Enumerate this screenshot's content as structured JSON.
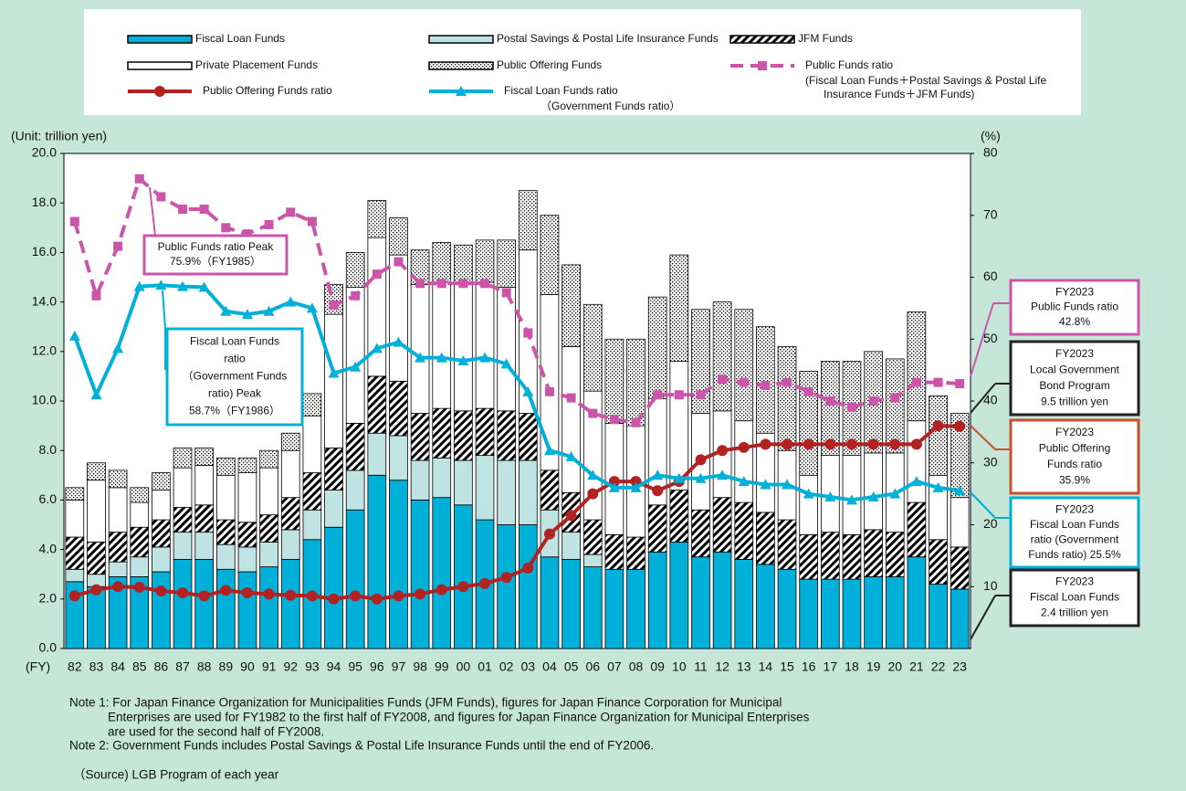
{
  "chart_data": {
    "type": "bar",
    "unit_label": "(Unit: trillion yen)",
    "y2_label": "(%)",
    "x_label": "(FY)",
    "categories": [
      "82",
      "83",
      "84",
      "85",
      "86",
      "87",
      "88",
      "89",
      "90",
      "91",
      "92",
      "93",
      "94",
      "95",
      "96",
      "97",
      "98",
      "99",
      "00",
      "01",
      "02",
      "03",
      "04",
      "05",
      "06",
      "07",
      "08",
      "09",
      "10",
      "11",
      "12",
      "13",
      "14",
      "15",
      "16",
      "17",
      "18",
      "19",
      "20",
      "21",
      "22",
      "23"
    ],
    "ylim": [
      0,
      20
    ],
    "yticks": [
      {
        "value": 0,
        "label": "0.0"
      },
      {
        "value": 2,
        "label": "2.0"
      },
      {
        "value": 4,
        "label": "4.0"
      },
      {
        "value": 6,
        "label": "6.0"
      },
      {
        "value": 8,
        "label": "8.0"
      },
      {
        "value": 10,
        "label": "10.0"
      },
      {
        "value": 12,
        "label": "12.0"
      },
      {
        "value": 14,
        "label": "14.0"
      },
      {
        "value": 16,
        "label": "16.0"
      },
      {
        "value": 18,
        "label": "18.0"
      },
      {
        "value": 20,
        "label": "20.0"
      }
    ],
    "y2lim": [
      0,
      80
    ],
    "y2ticks": [
      10,
      20,
      30,
      40,
      50,
      60,
      70,
      80
    ],
    "series": [
      {
        "name": "Fiscal Loan Funds",
        "type": "bar",
        "fill": "solid",
        "color": "#00b0d8",
        "values": [
          2.7,
          2.5,
          2.9,
          2.9,
          3.1,
          3.6,
          3.6,
          3.2,
          3.1,
          3.3,
          3.6,
          4.4,
          4.9,
          5.6,
          7.0,
          6.8,
          6.0,
          6.1,
          5.8,
          5.2,
          5.0,
          5.0,
          3.7,
          3.6,
          3.3,
          3.2,
          3.2,
          3.9,
          4.3,
          3.7,
          3.9,
          3.6,
          3.4,
          3.2,
          2.8,
          2.8,
          2.8,
          2.9,
          2.9,
          3.7,
          2.6,
          2.4
        ]
      },
      {
        "name": "Postal Savings & Postal Life Insurance Funds",
        "type": "bar",
        "fill": "solid",
        "color": "#bfe3e3",
        "values": [
          0.5,
          0.5,
          0.6,
          0.8,
          1.0,
          1.1,
          1.1,
          1.0,
          1.0,
          1.0,
          1.2,
          1.2,
          1.5,
          1.6,
          1.7,
          1.8,
          1.6,
          1.6,
          1.8,
          2.6,
          2.6,
          2.6,
          1.9,
          1.1,
          0.5,
          0,
          0,
          0,
          0,
          0,
          0,
          0,
          0,
          0,
          0,
          0,
          0,
          0,
          0,
          0,
          0,
          0
        ]
      },
      {
        "name": "JFM Funds",
        "type": "bar",
        "fill": "hatch",
        "color": "#000000",
        "values": [
          1.3,
          1.3,
          1.2,
          1.2,
          1.1,
          1.0,
          1.1,
          1.0,
          1.0,
          1.1,
          1.3,
          1.5,
          1.7,
          1.9,
          2.3,
          2.2,
          1.9,
          2.0,
          2.0,
          1.9,
          2.0,
          1.9,
          1.6,
          1.6,
          1.4,
          1.4,
          1.3,
          1.9,
          2.1,
          1.9,
          2.2,
          2.3,
          2.1,
          2.0,
          1.8,
          1.9,
          1.8,
          1.9,
          1.8,
          2.2,
          1.8,
          1.7
        ]
      },
      {
        "name": "Private Placement Funds",
        "type": "bar",
        "fill": "solid",
        "color": "#ffffff",
        "values": [
          1.5,
          2.5,
          1.8,
          1.0,
          1.2,
          1.6,
          1.6,
          1.8,
          2.0,
          1.9,
          1.9,
          2.3,
          5.4,
          5.5,
          5.6,
          5.1,
          5.2,
          5.1,
          5.2,
          5.1,
          5.0,
          6.6,
          7.1,
          5.9,
          5.2,
          4.5,
          4.5,
          4.3,
          5.2,
          3.9,
          3.5,
          3.3,
          3.2,
          2.8,
          2.4,
          3.1,
          3.2,
          3.1,
          3.2,
          3.3,
          2.6,
          2.0
        ]
      },
      {
        "name": "Public Offering Funds",
        "type": "bar",
        "fill": "dots",
        "color": "#000000",
        "values": [
          0.5,
          0.7,
          0.7,
          0.6,
          0.7,
          0.8,
          0.7,
          0.7,
          0.6,
          0.7,
          0.7,
          0.9,
          1.2,
          1.4,
          1.5,
          1.5,
          1.4,
          1.6,
          1.5,
          1.7,
          1.9,
          2.4,
          3.2,
          3.3,
          3.5,
          3.4,
          3.5,
          4.1,
          4.3,
          4.2,
          4.4,
          4.5,
          4.3,
          4.2,
          4.2,
          3.8,
          3.8,
          4.1,
          3.8,
          4.4,
          3.2,
          3.4
        ]
      },
      {
        "name": "Public Funds ratio",
        "note": [
          "(Fiscal Loan Funds＋Postal Savings & Postal Life",
          "Insurance Funds＋JFM Funds)"
        ],
        "type": "line",
        "axis": "y2",
        "dash": true,
        "marker": "square",
        "color": "#cc55aa",
        "values": [
          69,
          57,
          65,
          75.9,
          73,
          71,
          71,
          68,
          67,
          68.5,
          70.5,
          69,
          55.5,
          57,
          60.5,
          62.5,
          59,
          59,
          59,
          59,
          57.5,
          51,
          41.5,
          40.5,
          38,
          37,
          36.5,
          41,
          41,
          41,
          43.5,
          43,
          42.5,
          43,
          41.5,
          40,
          39,
          40,
          40.5,
          43,
          43,
          42.8
        ]
      },
      {
        "name": "Public Offering Funds ratio",
        "type": "line",
        "axis": "y2",
        "dash": false,
        "marker": "circle",
        "color": "#b22222",
        "values": [
          8.5,
          9.5,
          10,
          9.9,
          9.3,
          9,
          8.5,
          9.4,
          9,
          8.8,
          8.6,
          8.5,
          8,
          8.5,
          8,
          8.5,
          8.8,
          9.5,
          10,
          10.5,
          11.5,
          13,
          18.5,
          21.5,
          25,
          27,
          27,
          25.5,
          27,
          30.5,
          32,
          32.5,
          33,
          33,
          33,
          33,
          33,
          33,
          33,
          33,
          36,
          35.9
        ]
      },
      {
        "name": "Fiscal Loan Funds ratio",
        "note": [
          "（Government Funds ratio）"
        ],
        "type": "line",
        "axis": "y2",
        "dash": false,
        "marker": "triangle",
        "color": "#00b0d8",
        "values": [
          50.5,
          41,
          48.5,
          58.5,
          58.7,
          58.5,
          58.4,
          54.5,
          54,
          54.5,
          56,
          55,
          44.5,
          45.5,
          48.5,
          49.5,
          47,
          47,
          46.5,
          47,
          46,
          41.5,
          32,
          31,
          28,
          26,
          26,
          28,
          27.5,
          27.5,
          28,
          27,
          26.5,
          26.5,
          25,
          24.5,
          24,
          24.5,
          25,
          27,
          26,
          25.5
        ]
      }
    ],
    "annotations": [
      {
        "lines": [
          "Public Funds ratio Peak",
          "75.9%（FY1985）"
        ],
        "color": "#cc55aa"
      },
      {
        "lines": [
          "Fiscal Loan Funds",
          "ratio",
          "（Government Funds",
          "ratio) Peak",
          "58.7%（FY1986）"
        ],
        "color": "#00b0d8"
      },
      {
        "lines": [
          "FY2023",
          "Public Funds ratio",
          "42.8%"
        ],
        "color": "#cc55aa"
      },
      {
        "lines": [
          "FY2023",
          "Local Government",
          "Bond Program",
          "9.5 trillion yen"
        ],
        "color": "#222222"
      },
      {
        "lines": [
          "FY2023",
          "Public Offering",
          "Funds ratio",
          "35.9%"
        ],
        "color": "#c8502a"
      },
      {
        "lines": [
          "FY2023",
          "Fiscal Loan Funds",
          "ratio (Government",
          "Funds ratio) 25.5%"
        ],
        "color": "#00b0d8"
      },
      {
        "lines": [
          "FY2023",
          "Fiscal Loan Funds",
          "2.4 trillion yen"
        ],
        "color": "#222222"
      }
    ],
    "notes": [
      "Note 1: For Japan Finance Organization for Municipalities Funds (JFM Funds), figures for Japan Finance Corporation for Municipal",
      "Enterprises are used for FY1982 to the first half of FY2008, and figures for Japan Finance Organization for Municipal Enterprises",
      "are used for the second half of FY2008.",
      "Note 2: Government Funds includes Postal Savings & Postal Life Insurance Funds until the end of FY2006.",
      "（Source) LGB Program of each year"
    ]
  }
}
